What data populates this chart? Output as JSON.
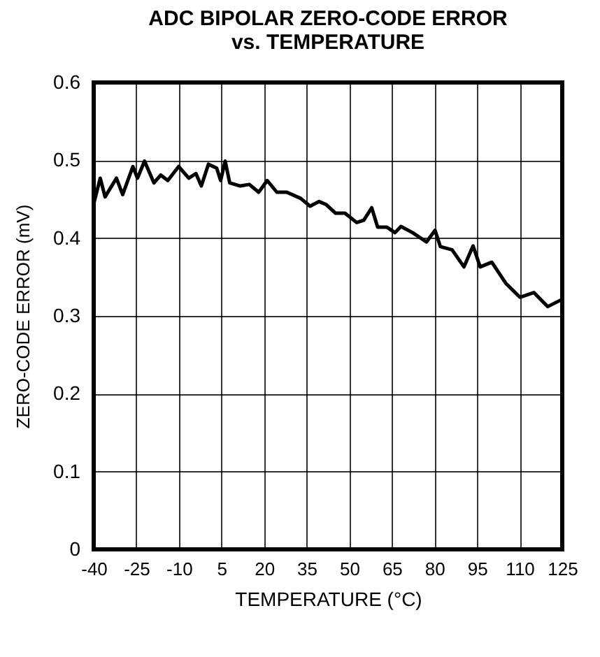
{
  "chart_data": {
    "type": "line",
    "title": "ADC BIPOLAR ZERO-CODE ERROR",
    "subtitle": "vs. TEMPERATURE",
    "xlabel": "TEMPERATURE (°C)",
    "ylabel": "ZERO-CODE ERROR (mV)",
    "x": [
      -40,
      -37.7,
      -36,
      -32,
      -29.8,
      -26.2,
      -24.6,
      -22.1,
      -18.8,
      -16.4,
      -13.9,
      -10.1,
      -6.5,
      -4,
      -2.1,
      0.4,
      3.3,
      4.7,
      6.3,
      7.9,
      11.6,
      14.8,
      18.1,
      21.1,
      24.5,
      28,
      32.9,
      36.2,
      39.4,
      41.9,
      45.2,
      48.5,
      52.6,
      55.1,
      57.9,
      60,
      63.3,
      66.1,
      68.2,
      72.3,
      77.2,
      80.2,
      82.1,
      86.2,
      90.4,
      93.6,
      96.1,
      100.2,
      105.1,
      110.1,
      115,
      119.9,
      124.8
    ],
    "series": [
      {
        "color": "#000000",
        "values": [
          0.444,
          0.477,
          0.453,
          0.477,
          0.456,
          0.492,
          0.477,
          0.499,
          0.471,
          0.481,
          0.474,
          0.492,
          0.477,
          0.483,
          0.467,
          0.495,
          0.49,
          0.474,
          0.499,
          0.471,
          0.467,
          0.469,
          0.459,
          0.474,
          0.459,
          0.459,
          0.451,
          0.441,
          0.447,
          0.443,
          0.432,
          0.432,
          0.42,
          0.423,
          0.439,
          0.414,
          0.414,
          0.407,
          0.415,
          0.407,
          0.395,
          0.41,
          0.389,
          0.385,
          0.363,
          0.39,
          0.363,
          0.369,
          0.342,
          0.324,
          0.33,
          0.312,
          0.321
        ]
      }
    ],
    "xlim": [
      -40,
      125
    ],
    "xticks": [
      -40,
      -25,
      -10,
      5,
      20,
      35,
      50,
      65,
      80,
      95,
      110,
      125
    ],
    "ylim": [
      0,
      0.6
    ],
    "yticks": [
      0,
      0.1,
      0.2,
      0.3,
      0.4,
      0.5,
      0.6
    ],
    "grid": true,
    "marker": "none",
    "line_style": "solid"
  }
}
